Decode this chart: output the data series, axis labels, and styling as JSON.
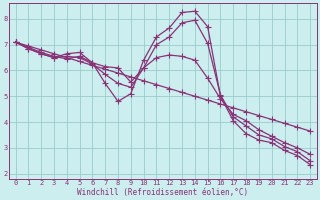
{
  "xlabel": "Windchill (Refroidissement éolien,°C)",
  "background_color": "#cceeee",
  "grid_color": "#99cccc",
  "line_color": "#883377",
  "xlim": [
    -0.5,
    23.5
  ],
  "ylim": [
    1.8,
    8.6
  ],
  "yticks": [
    2,
    3,
    4,
    5,
    6,
    7,
    8
  ],
  "xticks": [
    0,
    1,
    2,
    3,
    4,
    5,
    6,
    7,
    8,
    9,
    10,
    11,
    12,
    13,
    14,
    15,
    16,
    17,
    18,
    19,
    20,
    21,
    22,
    23
  ],
  "x": [
    0,
    1,
    2,
    3,
    4,
    5,
    6,
    7,
    8,
    9,
    10,
    11,
    12,
    13,
    14,
    15,
    16,
    17,
    18,
    19,
    20,
    21,
    22,
    23
  ],
  "curve1": [
    7.1,
    6.95,
    6.8,
    6.65,
    6.5,
    6.35,
    6.2,
    6.05,
    5.9,
    5.75,
    5.6,
    5.45,
    5.3,
    5.15,
    5.0,
    4.85,
    4.7,
    4.55,
    4.4,
    4.25,
    4.1,
    3.95,
    3.8,
    3.65
  ],
  "curve2": [
    7.1,
    6.9,
    6.7,
    6.55,
    6.45,
    6.55,
    6.3,
    6.15,
    6.1,
    5.55,
    6.1,
    6.5,
    6.6,
    6.55,
    6.4,
    5.7,
    4.9,
    4.3,
    4.05,
    3.7,
    3.45,
    3.2,
    3.0,
    2.75
  ],
  "curve3": [
    7.1,
    6.85,
    6.65,
    6.5,
    6.65,
    6.7,
    6.3,
    5.5,
    4.8,
    5.1,
    6.4,
    7.3,
    7.65,
    8.25,
    8.3,
    7.7,
    5.0,
    4.05,
    3.55,
    3.3,
    3.2,
    2.9,
    2.7,
    2.35
  ],
  "curve4": [
    7.1,
    6.85,
    6.65,
    6.5,
    6.55,
    6.5,
    6.25,
    5.85,
    5.5,
    5.35,
    6.1,
    7.0,
    7.3,
    7.85,
    7.95,
    7.05,
    5.05,
    4.2,
    3.85,
    3.5,
    3.35,
    3.05,
    2.85,
    2.5
  ],
  "marker": "+",
  "markersize": 4,
  "linewidth": 0.9
}
